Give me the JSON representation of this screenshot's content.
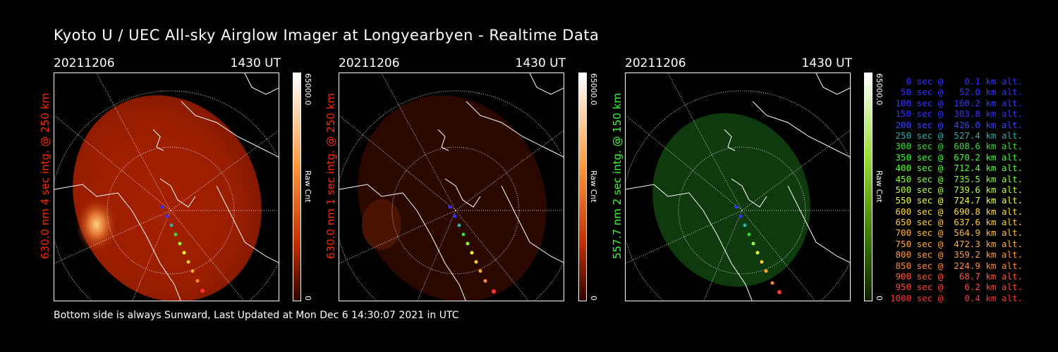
{
  "title": "Kyoto U / UEC All-sky Airglow Imager at Longyearbyen - Realtime Data",
  "footer": "Bottom side is always Sunward, Last Updated at Mon Dec  6 14:30:07 2021 in UTC",
  "panels": [
    {
      "date": "20211206",
      "time": "1430 UT",
      "side_label": "630.0 nm 4 sec intg. @ 250 km",
      "label_color": "#ff2a00",
      "cbar_max": "65000.0",
      "cbar_min": "0",
      "cbar_label": "Raw Cnt"
    },
    {
      "date": "20211206",
      "time": "1430 UT",
      "side_label": "630.0 nm 1 sec intg. @ 250 km",
      "label_color": "#ff2a00",
      "cbar_max": "65000.0",
      "cbar_min": "0",
      "cbar_label": "Raw Cnt"
    },
    {
      "date": "20211206",
      "time": "1430 UT",
      "side_label": "557.7 nm 2 sec intg. @ 150 km",
      "label_color": "#33ff33",
      "cbar_max": "65000.0",
      "cbar_min": "0",
      "cbar_label": "Raw Cnt"
    }
  ],
  "legend": [
    {
      "text": "   0 sec @    0.1 km alt.",
      "color": "#3333ff"
    },
    {
      "text": "  50 sec @   52.0 km alt.",
      "color": "#3333ff"
    },
    {
      "text": " 100 sec @  160.2 km alt.",
      "color": "#3333ff"
    },
    {
      "text": " 150 sec @  303.8 km alt.",
      "color": "#3333ff"
    },
    {
      "text": " 200 sec @  426.0 km alt.",
      "color": "#3344ff"
    },
    {
      "text": " 250 sec @  527.4 km alt.",
      "color": "#33aaaa"
    },
    {
      "text": " 300 sec @  608.6 km alt.",
      "color": "#33dd33"
    },
    {
      "text": " 350 sec @  670.2 km alt.",
      "color": "#33ff33"
    },
    {
      "text": " 400 sec @  712.4 km alt.",
      "color": "#55ff33"
    },
    {
      "text": " 450 sec @  735.5 km alt.",
      "color": "#88ff33"
    },
    {
      "text": " 500 sec @  739.6 km alt.",
      "color": "#bbff33"
    },
    {
      "text": " 550 sec @  724.7 km alt.",
      "color": "#eeff33"
    },
    {
      "text": " 600 sec @  690.8 km alt.",
      "color": "#ffdd33"
    },
    {
      "text": " 650 sec @  637.6 km alt.",
      "color": "#ffcc33"
    },
    {
      "text": " 700 sec @  564.9 km alt.",
      "color": "#ffbb33"
    },
    {
      "text": " 750 sec @  472.3 km alt.",
      "color": "#ffaa33"
    },
    {
      "text": " 800 sec @  359.2 km alt.",
      "color": "#ff9933"
    },
    {
      "text": " 850 sec @  224.9 km alt.",
      "color": "#ff8833"
    },
    {
      "text": " 900 sec @   68.7 km alt.",
      "color": "#ff5533"
    },
    {
      "text": " 950 sec @    6.2 km alt.",
      "color": "#ff4433"
    },
    {
      "text": "1000 sec @    0.4 km alt.",
      "color": "#ff3333"
    }
  ],
  "colors": {
    "red_glow": "#b32400",
    "dim_glow": "#2a0800",
    "green_glow": "#0e3a0e"
  }
}
